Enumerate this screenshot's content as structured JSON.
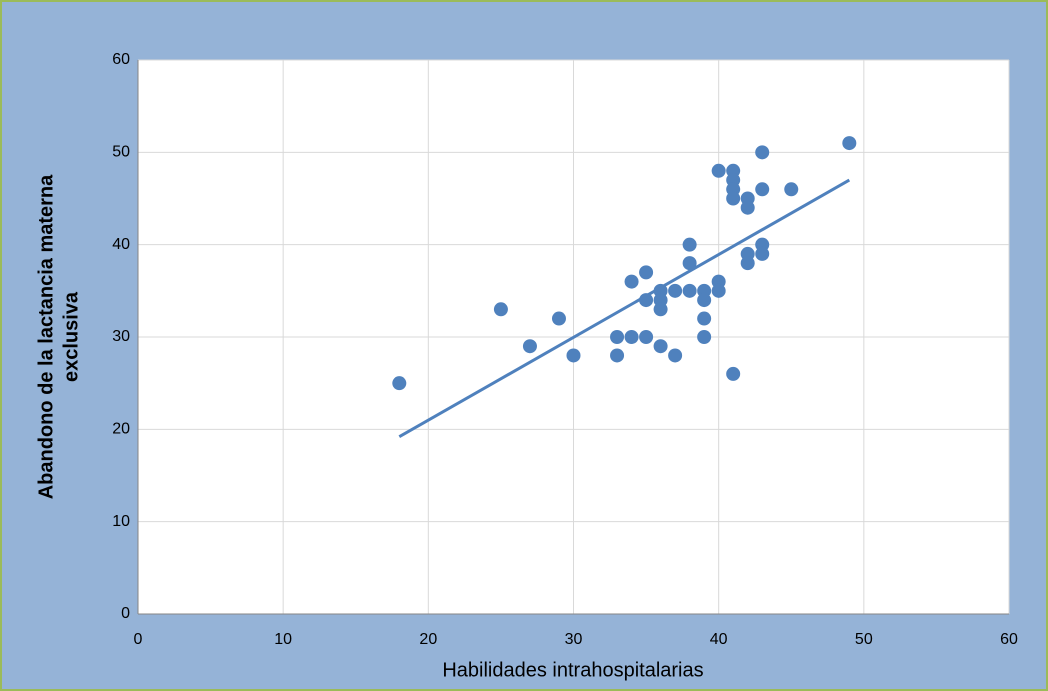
{
  "chart_data": {
    "type": "scatter",
    "xlabel": "Habilidades intrahospitalarias",
    "ylabel": [
      "Abandono de la lactancia materna",
      "exclusiva"
    ],
    "x": [
      18,
      25,
      27,
      29,
      30,
      33,
      33,
      34,
      34,
      35,
      35,
      35,
      36,
      36,
      36,
      36,
      37,
      37,
      38,
      38,
      38,
      39,
      39,
      39,
      39,
      40,
      40,
      40,
      41,
      41,
      41,
      41,
      41,
      42,
      42,
      42,
      42,
      43,
      43,
      43,
      43,
      45,
      49
    ],
    "values": [
      25,
      33,
      29,
      32,
      28,
      30,
      28,
      36,
      30,
      37,
      34,
      30,
      35,
      34,
      33,
      29,
      35,
      28,
      40,
      38,
      35,
      35,
      34,
      32,
      30,
      48,
      36,
      35,
      48,
      47,
      46,
      45,
      26,
      45,
      44,
      39,
      38,
      50,
      46,
      40,
      39,
      46,
      51
    ],
    "color": "#4f81bd",
    "trendline": {
      "x": [
        18,
        49
      ],
      "values": [
        19.2,
        47
      ],
      "color": "#4f81bd"
    },
    "xlim": [
      0,
      60
    ],
    "xticks": [
      0,
      10,
      20,
      30,
      40,
      50,
      60
    ],
    "ylim": [
      0,
      60
    ],
    "yticks": [
      0,
      10,
      20,
      30,
      40,
      50,
      60
    ],
    "grid": true
  }
}
